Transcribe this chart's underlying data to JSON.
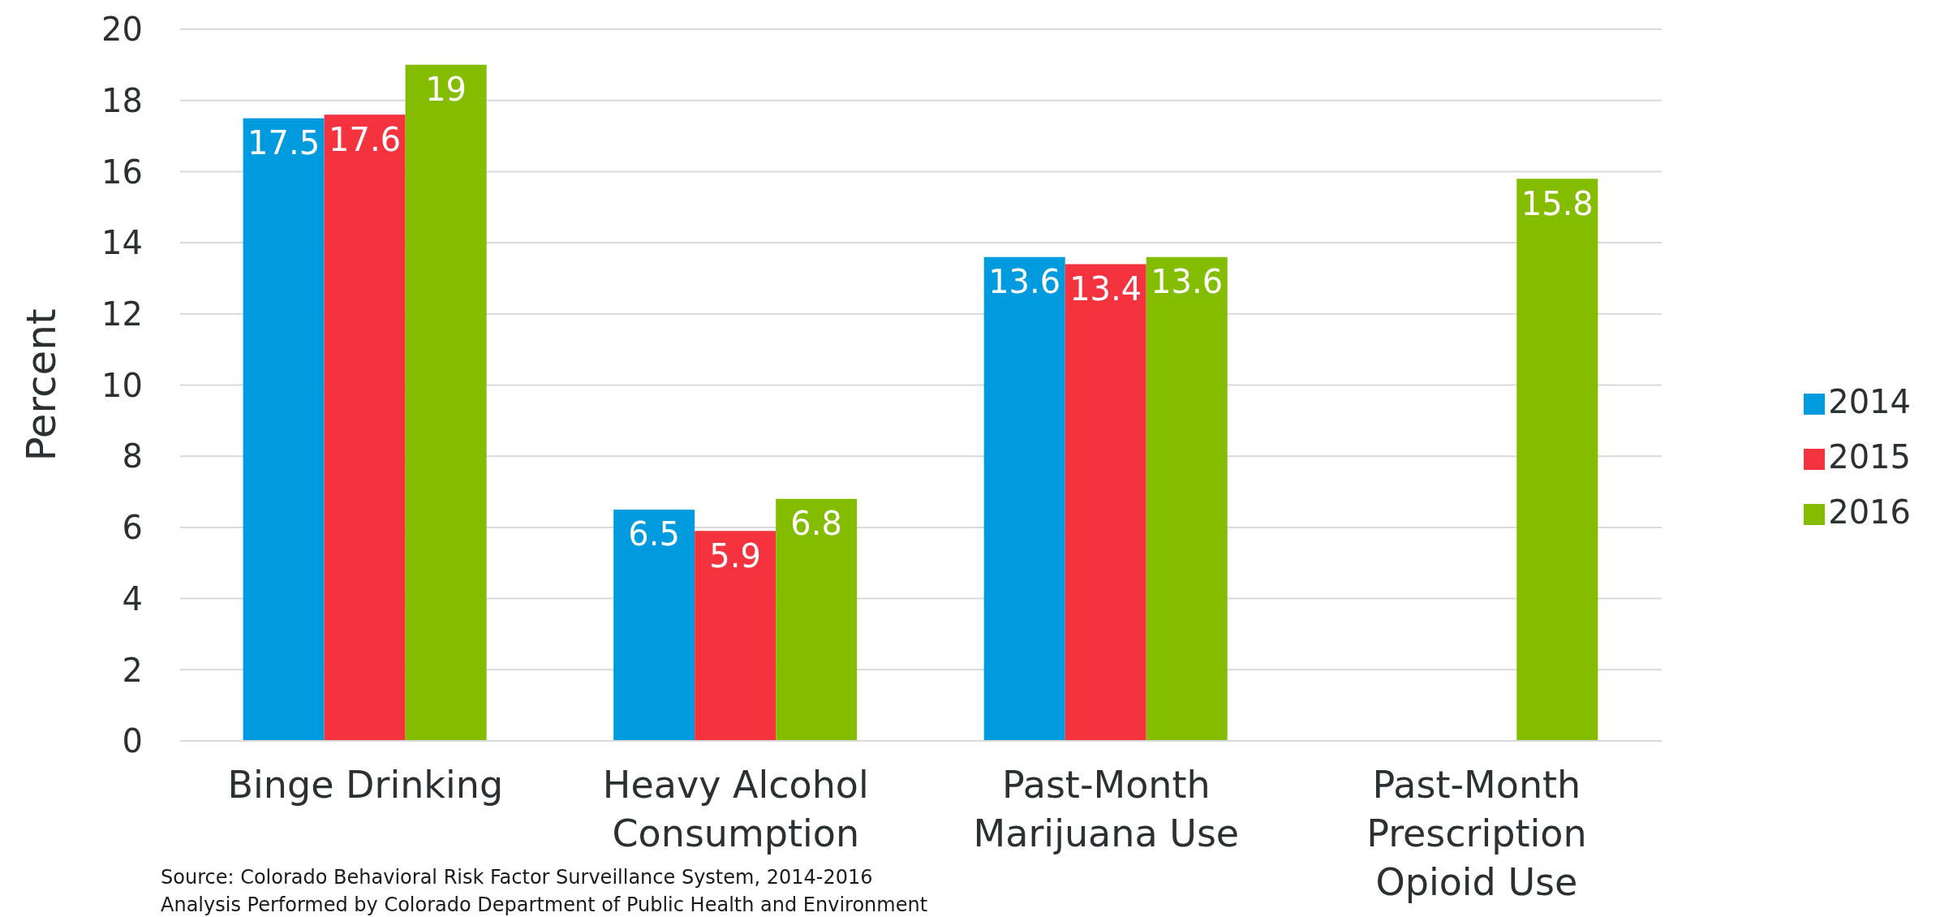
{
  "chart_data": {
    "type": "bar",
    "ylabel": "Percent",
    "categories": [
      "Binge Drinking",
      "Heavy Alcohol Consumption",
      "Past-Month Marijuana Use",
      "Past-Month Prescription Opioid Use"
    ],
    "series": [
      {
        "name": "2014",
        "color": "#009ade",
        "values": [
          17.5,
          6.5,
          13.6,
          null
        ]
      },
      {
        "name": "2015",
        "color": "#f5333f",
        "values": [
          17.6,
          5.9,
          13.4,
          null
        ]
      },
      {
        "name": "2016",
        "color": "#84bd00",
        "values": [
          19,
          6.8,
          13.6,
          15.8
        ]
      }
    ],
    "ylim": [
      0,
      20
    ],
    "yticks": [
      0,
      2,
      4,
      6,
      8,
      10,
      12,
      14,
      16,
      18,
      20
    ],
    "grid": "y",
    "legend": "right",
    "data_labels": true,
    "annotations": [
      "Source: Colorado Behavioral Risk Factor Surveillance System, 2014-2016",
      "Analysis Performed by Colorado Department of Public Health and Environment"
    ]
  }
}
